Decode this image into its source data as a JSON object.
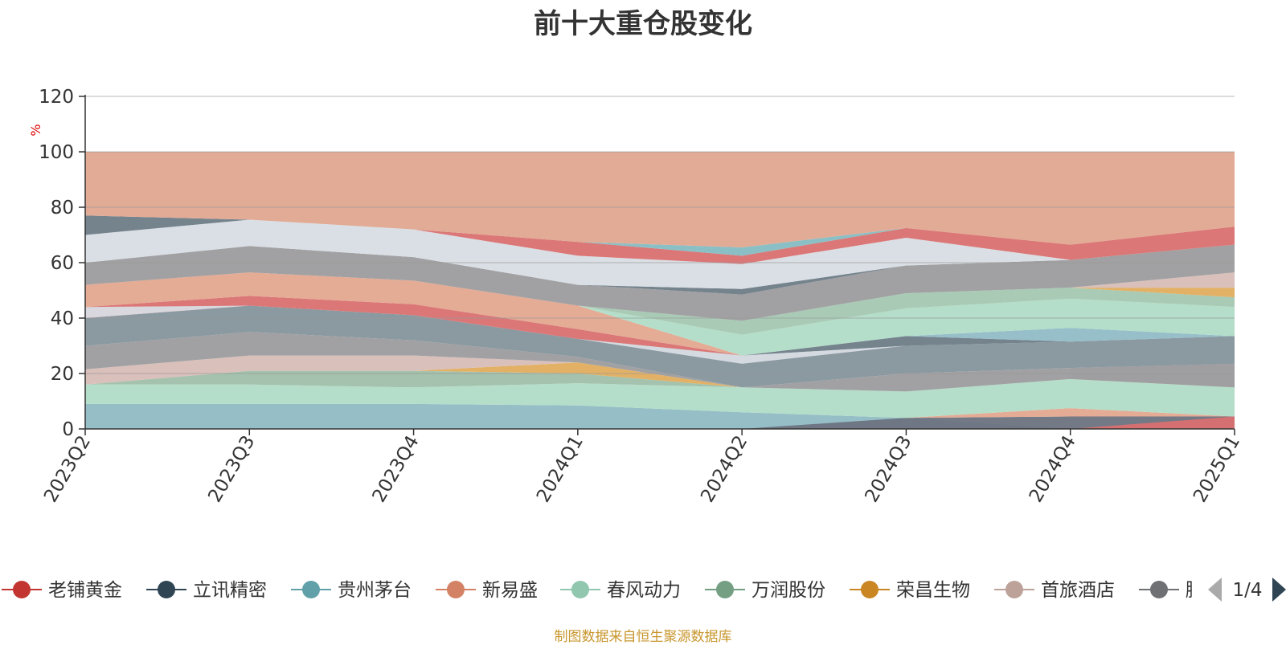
{
  "chart_data": {
    "type": "area",
    "title": "前十大重仓股变化",
    "ylabel": "%",
    "ylim": [
      0,
      120
    ],
    "yticks": [
      0,
      20,
      40,
      60,
      80,
      100,
      120
    ],
    "categories": [
      "2023Q2",
      "2023Q3",
      "2023Q4",
      "2024Q1",
      "2024Q2",
      "2024Q3",
      "2024Q4",
      "2025Q1"
    ],
    "grid": true,
    "legend_position": "bottom",
    "legend_page": "1/4",
    "bands": [
      {
        "color": "#8fbac4",
        "upper": [
          9,
          9,
          9,
          8.5,
          6,
          4,
          0,
          0
        ],
        "lower": [
          0,
          0,
          0,
          0,
          0,
          0,
          0,
          0
        ]
      },
      {
        "color": "#6b7380",
        "upper": [
          null,
          null,
          null,
          null,
          0,
          4,
          4.5,
          4.5
        ],
        "lower": [
          null,
          null,
          null,
          null,
          0,
          0,
          0,
          0
        ]
      },
      {
        "color": "#d97070",
        "upper": [
          null,
          null,
          null,
          null,
          null,
          null,
          0,
          4.5
        ],
        "lower": [
          null,
          null,
          null,
          null,
          null,
          null,
          0,
          0
        ]
      },
      {
        "color": "#e3a68f",
        "upper": [
          null,
          null,
          null,
          null,
          null,
          4,
          7.5,
          4.5
        ],
        "lower": [
          null,
          null,
          null,
          null,
          null,
          4,
          4.5,
          4.5
        ]
      },
      {
        "color": "#b0dcc6",
        "upper": [
          16,
          16,
          15,
          16.5,
          15,
          13.5,
          18,
          15
        ],
        "lower": [
          9,
          9,
          9,
          8.5,
          6,
          4,
          7.5,
          4.5
        ]
      },
      {
        "color": "#9fbfa9",
        "upper": [
          16,
          21,
          21,
          20,
          15,
          null,
          null,
          null
        ],
        "lower": [
          16,
          16,
          15,
          16.5,
          15,
          null,
          null,
          null
        ]
      },
      {
        "color": "#e0ad5e",
        "upper": [
          null,
          21,
          21,
          24,
          15,
          null,
          null,
          null
        ],
        "lower": [
          null,
          21,
          21,
          20,
          15,
          null,
          null,
          null
        ]
      },
      {
        "color": "#d7bdb7",
        "upper": [
          21.5,
          26.5,
          26.5,
          24,
          15,
          null,
          22,
          23.5
        ],
        "lower": [
          16,
          21,
          21,
          24,
          15,
          null,
          18,
          15
        ]
      },
      {
        "color": "#9c9c9e",
        "upper": [
          30,
          35,
          32,
          26,
          15,
          20,
          22,
          23.5
        ],
        "lower": [
          21.5,
          26.5,
          26.5,
          24,
          15,
          13.5,
          18,
          15
        ]
      },
      {
        "color": "#85939c",
        "upper": [
          40,
          44.5,
          41,
          32.5,
          26.5,
          30,
          31.5,
          33.5
        ],
        "lower": [
          30,
          35,
          32,
          26,
          15,
          20,
          22,
          23.5
        ]
      },
      {
        "color": "#6e7c87",
        "upper": [
          null,
          null,
          null,
          null,
          26.5,
          33.5,
          31.5,
          33.5
        ],
        "lower": [
          null,
          null,
          null,
          null,
          26.5,
          30,
          31.5,
          33.5
        ]
      },
      {
        "color": "#d97070",
        "upper": [
          44,
          48,
          45,
          36,
          26.5,
          null,
          null,
          null
        ],
        "lower": [
          40,
          44.5,
          41,
          32.5,
          26.5,
          null,
          null,
          null
        ]
      },
      {
        "color": "#d8dde4",
        "upper": [
          44,
          44.5,
          41,
          32.5,
          26.5,
          30,
          null,
          null
        ],
        "lower": [
          40,
          44.5,
          41,
          32.5,
          23.5,
          30,
          null,
          null
        ]
      },
      {
        "color": "#91bcc6",
        "upper": [
          null,
          null,
          null,
          null,
          null,
          33.5,
          36.5,
          33.5
        ],
        "lower": [
          null,
          null,
          null,
          null,
          null,
          33.5,
          31.5,
          33.5
        ]
      },
      {
        "color": "#e3a68f",
        "upper": [
          52,
          56.5,
          53.5,
          44.5,
          26.5,
          null,
          null,
          null
        ],
        "lower": [
          44,
          48,
          45,
          36,
          26.5,
          null,
          null,
          null
        ]
      },
      {
        "color": "#b0dcc6",
        "upper": [
          null,
          null,
          null,
          44.5,
          34,
          43.5,
          47,
          44
        ],
        "lower": [
          null,
          null,
          null,
          44.5,
          26.5,
          33.5,
          36.5,
          33.5
        ]
      },
      {
        "color": "#a4c8b1",
        "upper": [
          null,
          null,
          null,
          44.5,
          39,
          49,
          51,
          47.5
        ],
        "lower": [
          null,
          null,
          null,
          44.5,
          34,
          43.5,
          47,
          44
        ]
      },
      {
        "color": "#e0ad5e",
        "upper": [
          null,
          null,
          null,
          null,
          null,
          null,
          51,
          51
        ],
        "lower": [
          null,
          null,
          null,
          null,
          null,
          null,
          51,
          47.5
        ]
      },
      {
        "color": "#d7bdb7",
        "upper": [
          null,
          null,
          null,
          null,
          null,
          null,
          51,
          56.5
        ],
        "lower": [
          null,
          null,
          null,
          null,
          null,
          null,
          51,
          51
        ]
      },
      {
        "color": "#9c9c9e",
        "upper": [
          60,
          66,
          62,
          52,
          48.5,
          59,
          61,
          66.5
        ],
        "lower": [
          52,
          56.5,
          53.5,
          44.5,
          39,
          49,
          51,
          56.5
        ]
      },
      {
        "color": "#6e7c87",
        "upper": [
          null,
          null,
          null,
          52,
          50.5,
          59,
          null,
          null
        ],
        "lower": [
          null,
          null,
          null,
          52,
          48.5,
          59,
          null,
          null
        ]
      },
      {
        "color": "#d8dde4",
        "upper": [
          70,
          75.5,
          72,
          62.5,
          59.5,
          69,
          61,
          null
        ],
        "lower": [
          60,
          66,
          62,
          52,
          50.5,
          59,
          61,
          null
        ]
      },
      {
        "color": "#d97070",
        "upper": [
          null,
          null,
          72,
          67.5,
          62.5,
          72.5,
          66.5,
          73
        ],
        "lower": [
          null,
          null,
          72,
          62.5,
          59.5,
          69,
          61,
          66.5
        ]
      },
      {
        "color": "#84bcc2",
        "upper": [
          null,
          null,
          null,
          67.5,
          65.5,
          72.5,
          null,
          null
        ],
        "lower": [
          null,
          null,
          null,
          67.5,
          62.5,
          72.5,
          null,
          null
        ]
      },
      {
        "color": "#6e7c87",
        "upper": [
          77,
          75.5,
          72,
          null,
          null,
          null,
          null,
          null
        ],
        "lower": [
          70,
          75.5,
          72,
          null,
          null,
          null,
          null,
          null
        ]
      },
      {
        "color": "#e0a68f",
        "upper": [
          100,
          100,
          100,
          100,
          100,
          100,
          100,
          100
        ],
        "lower": [
          77,
          75.5,
          72,
          67.5,
          65.5,
          72.5,
          66.5,
          73
        ]
      }
    ]
  },
  "legend": {
    "items": [
      {
        "label": "老铺黄金",
        "color": "#c23531"
      },
      {
        "label": "立讯精密",
        "color": "#2f4554"
      },
      {
        "label": "贵州茅台",
        "color": "#61a0a8"
      },
      {
        "label": "新易盛",
        "color": "#d48265"
      },
      {
        "label": "春风动力",
        "color": "#91c7ae"
      },
      {
        "label": "万润股份",
        "color": "#749f83"
      },
      {
        "label": "荣昌生物",
        "color": "#ca8622"
      },
      {
        "label": "首旅酒店",
        "color": "#bda29a"
      },
      {
        "label": "腾讯",
        "color": "#6e7074"
      }
    ],
    "page_text": "1/4",
    "prev_color": "#aaaaaa",
    "next_color": "#2f4554"
  },
  "source_note": "制图数据来自恒生聚源数据库",
  "colors": {
    "axis": "#333333",
    "grid": "#cccccc",
    "tick_text": "#333333",
    "ylabel": "#e00000",
    "source": "#c8962d"
  }
}
